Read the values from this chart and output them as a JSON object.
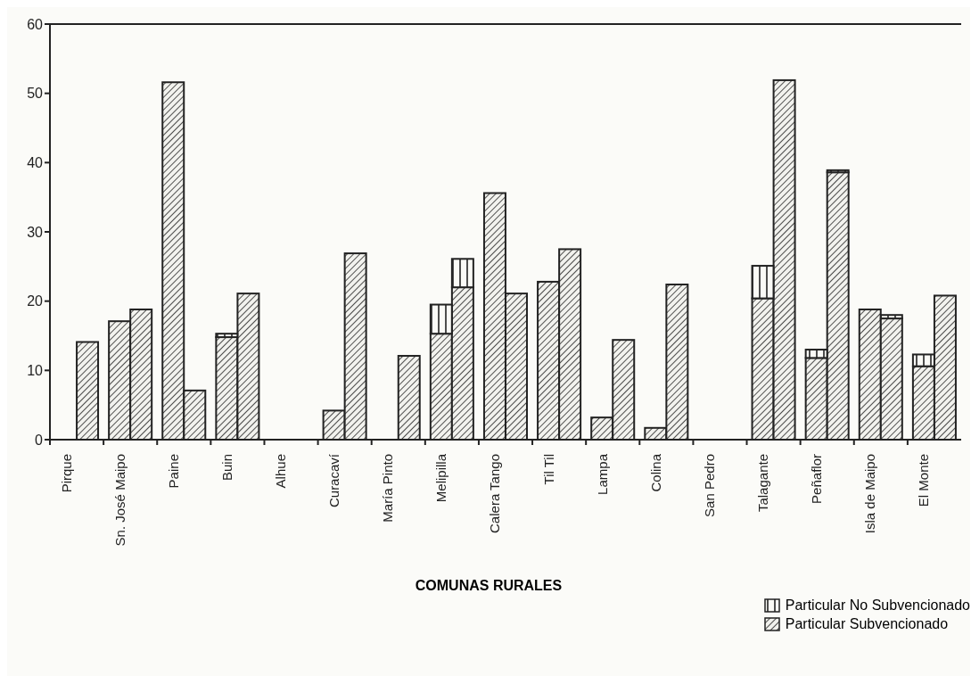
{
  "chart_data": {
    "type": "bar",
    "xlabel": "COMUNAS RURALES",
    "categories": [
      "Pirque",
      null,
      "Sn. José Maipo",
      null,
      "Paine",
      null,
      "Buin",
      null,
      "Alhue",
      null,
      "Curacaví",
      null,
      "María Pinto",
      null,
      "Melipilla",
      null,
      "Calera Tango",
      null,
      "Til Til",
      null,
      "Lampa",
      null,
      "Colina",
      null,
      "San Pedro",
      null,
      "Talagante",
      null,
      "Peñaflor",
      null,
      "Isla de Maipo",
      null,
      "El Monte",
      null
    ],
    "series": [
      {
        "name": "Particular Subvencionado",
        "color": "#222222",
        "values": [
          null,
          14.1,
          17.1,
          18.8,
          51.6,
          7.1,
          14.8,
          21.1,
          null,
          null,
          4.2,
          26.9,
          null,
          12.1,
          15.3,
          22.0,
          35.6,
          21.1,
          22.8,
          27.5,
          3.2,
          14.4,
          1.7,
          22.4,
          null,
          null,
          20.4,
          51.9,
          11.8,
          38.6,
          18.8,
          17.5,
          10.6,
          20.8
        ]
      },
      {
        "name": "Particular No Subvencionado",
        "color": "#222222",
        "values": [
          null,
          null,
          null,
          null,
          null,
          null,
          0.5,
          null,
          null,
          null,
          null,
          null,
          null,
          null,
          4.2,
          4.1,
          null,
          null,
          null,
          null,
          null,
          null,
          null,
          null,
          null,
          null,
          4.7,
          null,
          1.2,
          0.3,
          null,
          0.5,
          1.7,
          null
        ]
      }
    ],
    "stacked": true,
    "ylim": [
      0,
      60
    ],
    "yticks": [
      0,
      10,
      20,
      30,
      40,
      50,
      60
    ],
    "grid": false,
    "legend": "bottom right"
  }
}
